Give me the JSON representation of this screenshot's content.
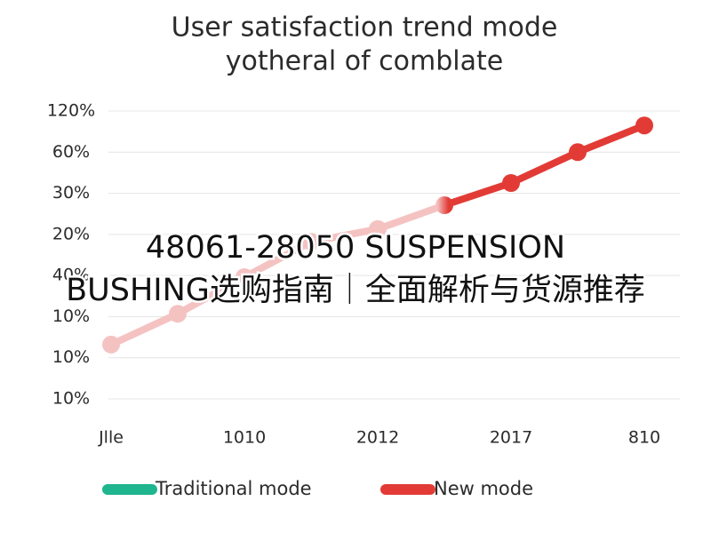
{
  "chart_data": {
    "type": "line",
    "title": [
      "User satisfaction trend mode",
      "yotheral of comblate"
    ],
    "categories": [
      "Jlle",
      null,
      "1010",
      null,
      "2012",
      null,
      "2017",
      null,
      "810"
    ],
    "y_categories": [
      "10%",
      "10%",
      "10%",
      "40%",
      "20%",
      "30%",
      "60%",
      "120%"
    ],
    "ylim": [
      0,
      7
    ],
    "grid": true,
    "series": [
      {
        "name": "Traditional mode",
        "color": "#1fb58f",
        "values": [
          null,
          null,
          null,
          null,
          null,
          null,
          null,
          null,
          null
        ]
      },
      {
        "name": "New mode",
        "color": "#e23b36",
        "values": [
          1.32,
          2.07,
          2.96,
          3.82,
          4.13,
          4.71,
          5.25,
          6.0,
          6.65
        ]
      }
    ],
    "overlay_text": [
      "48061-28050 SUSPENSION",
      "BUSHING选购指南｜全面解析与货源推荐"
    ]
  }
}
